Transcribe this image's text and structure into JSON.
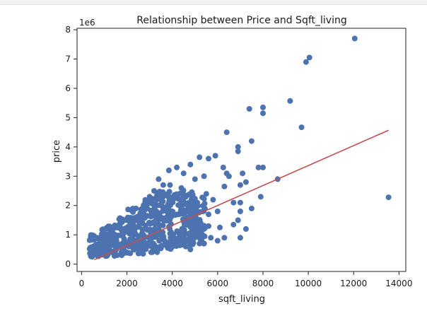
{
  "chart_data": {
    "type": "scatter",
    "title": "Relationship between Price and Sqft_living",
    "xlabel": "sqft_living",
    "ylabel": "price",
    "y_offset_text": "1e6",
    "xlim": [
      -200,
      14300
    ],
    "ylim": [
      -250000,
      8050000
    ],
    "x_ticks": [
      0,
      2000,
      4000,
      6000,
      8000,
      10000,
      12000,
      14000
    ],
    "x_tick_labels": [
      "0",
      "2000",
      "4000",
      "6000",
      "8000",
      "10000",
      "12000",
      "14000"
    ],
    "y_ticks": [
      0,
      1000000,
      2000000,
      3000000,
      4000000,
      5000000,
      6000000,
      7000000,
      8000000
    ],
    "y_tick_labels": [
      "0",
      "1",
      "2",
      "3",
      "4",
      "5",
      "6",
      "7",
      "8"
    ],
    "grid": false,
    "colors": {
      "points": "#4c72b0",
      "fit_line": "#c44e52"
    },
    "points": [
      [
        12050,
        7700000
      ],
      [
        10050,
        7050000
      ],
      [
        9900,
        6900000
      ],
      [
        9200,
        5570000
      ],
      [
        8000,
        5350000
      ],
      [
        8000,
        5150000
      ],
      [
        7400,
        5300000
      ],
      [
        9700,
        4670000
      ],
      [
        6400,
        4500000
      ],
      [
        7500,
        4200000
      ],
      [
        6900,
        4000000
      ],
      [
        6900,
        3850000
      ],
      [
        13540,
        2280000
      ],
      [
        8650,
        2900000
      ],
      [
        7800,
        3300000
      ],
      [
        8000,
        3300000
      ],
      [
        7100,
        3100000
      ],
      [
        7000,
        2700000
      ],
      [
        6300,
        2650000
      ],
      [
        6500,
        3000000
      ],
      [
        7250,
        2800000
      ],
      [
        7900,
        2300000
      ],
      [
        7500,
        1900000
      ],
      [
        7000,
        1800000
      ],
      [
        6900,
        1500000
      ],
      [
        6700,
        1350000
      ],
      [
        7000,
        900000
      ],
      [
        7250,
        1200000
      ],
      [
        7000,
        2100000
      ],
      [
        6250,
        3300000
      ],
      [
        5900,
        3700000
      ],
      [
        5600,
        3600000
      ],
      [
        5800,
        2200000
      ],
      [
        6100,
        1250000
      ],
      [
        6000,
        800000
      ],
      [
        6400,
        3100000
      ],
      [
        6700,
        2100000
      ],
      [
        6000,
        1800000
      ],
      [
        5200,
        3650000
      ],
      [
        5400,
        3000000
      ],
      [
        5000,
        2900000
      ],
      [
        4500,
        3100000
      ],
      [
        4200,
        3300000
      ],
      [
        4800,
        3400000
      ],
      [
        4400,
        2600000
      ],
      [
        3850,
        3200000
      ],
      [
        3900,
        2700000
      ],
      [
        5200,
        1500000
      ],
      [
        5600,
        1700000
      ],
      [
        5700,
        900000
      ],
      [
        5500,
        2400000
      ],
      [
        4700,
        1800000
      ],
      [
        4300,
        1700000
      ],
      [
        4600,
        2300000
      ],
      [
        3800,
        2400000
      ],
      [
        3500,
        2000000
      ],
      [
        3200,
        2500000
      ],
      [
        3600,
        2700000
      ],
      [
        4900,
        1300000
      ],
      [
        5100,
        2100000
      ],
      [
        5400,
        1200000
      ],
      [
        3300,
        1800000
      ],
      [
        2900,
        1900000
      ],
      [
        3400,
        2900000
      ],
      [
        4000,
        1800000
      ],
      [
        4900,
        900000
      ],
      [
        5600,
        1300000
      ],
      [
        6300,
        900000
      ],
      [
        3000,
        2300000
      ],
      [
        2800,
        2100000
      ],
      [
        2600,
        1750000
      ],
      [
        2400,
        1900000
      ],
      [
        4500,
        1100000
      ],
      [
        4600,
        600000
      ],
      [
        4000,
        600000
      ],
      [
        3500,
        550000
      ],
      [
        5200,
        700000
      ],
      [
        4800,
        500000
      ]
    ],
    "density_bands": [
      [
        700,
        250000,
        1000000
      ],
      [
        1200,
        250000,
        1300000
      ],
      [
        1800,
        300000,
        1600000
      ],
      [
        2400,
        350000,
        1900000
      ],
      [
        3000,
        400000,
        2300000
      ],
      [
        3600,
        500000,
        2500000
      ],
      [
        4200,
        600000,
        2600000
      ],
      [
        4700,
        650000,
        2500000
      ],
      [
        5100,
        700000,
        2300000
      ]
    ],
    "fit_line": {
      "x": [
        560,
        13540
      ],
      "y": [
        150000,
        4570000
      ]
    }
  }
}
